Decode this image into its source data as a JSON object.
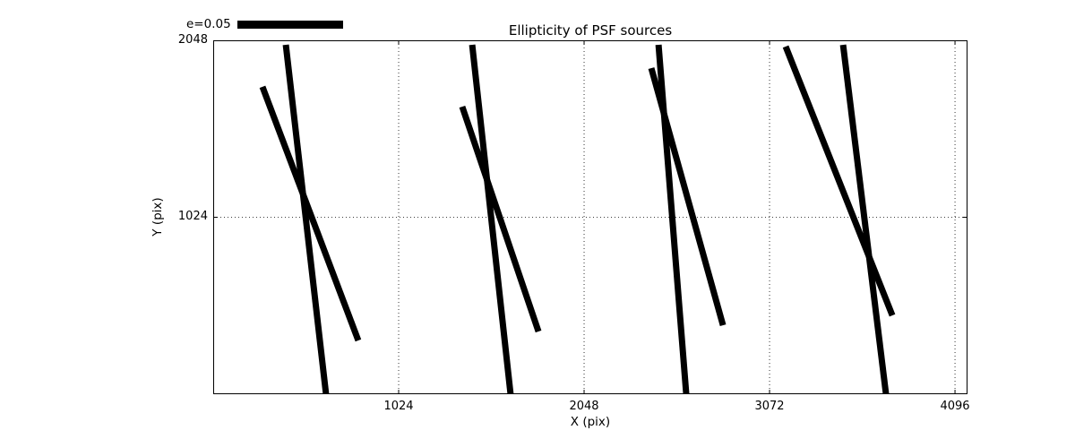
{
  "chart_data": {
    "type": "line",
    "title": "Ellipticity of PSF sources",
    "xlabel": "X (pix)",
    "ylabel": "Y (pix)",
    "legend_label": "e=0.05",
    "xlim": [
      0,
      4165
    ],
    "ylim": [
      0,
      2048
    ],
    "x_ticks": [
      1024,
      2048,
      3072,
      4096
    ],
    "x_tick_labels": [
      "1024",
      "2048",
      "3072",
      "4096"
    ],
    "y_ticks": [
      1024,
      2048
    ],
    "y_tick_labels": [
      "1024",
      "2048"
    ],
    "grid": true,
    "grid_style": "dotted",
    "background_color": "#ffffff",
    "line_color": "#000000",
    "line_width": 7,
    "whiskers": [
      {
        "x1": 272,
        "y1": 1779,
        "x2": 801,
        "y2": 311
      },
      {
        "x1": 401,
        "y1": 2022,
        "x2": 623,
        "y2": 0
      },
      {
        "x1": 1375,
        "y1": 1664,
        "x2": 1796,
        "y2": 363
      },
      {
        "x1": 1430,
        "y1": 2022,
        "x2": 1642,
        "y2": 0
      },
      {
        "x1": 2419,
        "y1": 1887,
        "x2": 2815,
        "y2": 399
      },
      {
        "x1": 2459,
        "y1": 2022,
        "x2": 2612,
        "y2": 0
      },
      {
        "x1": 3161,
        "y1": 2012,
        "x2": 3750,
        "y2": 456
      },
      {
        "x1": 3478,
        "y1": 2022,
        "x2": 3715,
        "y2": 0
      }
    ]
  }
}
